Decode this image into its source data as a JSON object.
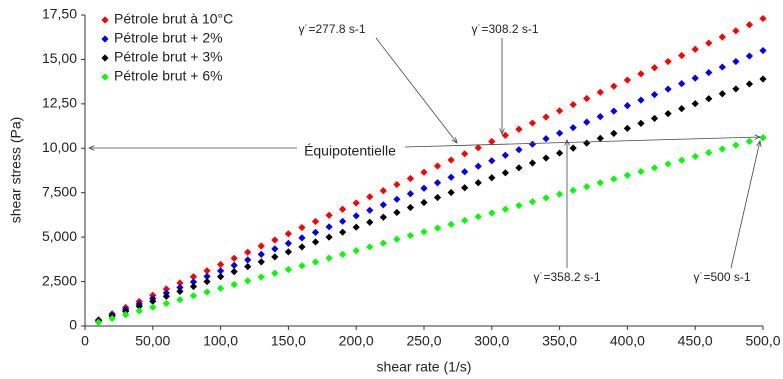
{
  "chart_data": {
    "type": "scatter",
    "x_label": "shear rate (1/s)",
    "y_label": "shear stress (Pa)",
    "x": [
      10,
      20,
      30,
      40,
      50,
      60,
      70,
      80,
      90,
      100,
      110,
      120,
      130,
      140,
      150,
      160,
      170,
      180,
      190,
      200,
      210,
      220,
      230,
      240,
      250,
      260,
      270,
      280,
      290,
      300,
      310,
      320,
      330,
      340,
      350,
      360,
      370,
      380,
      390,
      400,
      410,
      420,
      430,
      440,
      450,
      460,
      470,
      480,
      490,
      500
    ],
    "series": [
      {
        "name": "Pétrole brut à 10°C",
        "color": "#ff0000",
        "values": [
          0.35,
          0.69,
          1.04,
          1.38,
          1.73,
          2.08,
          2.42,
          2.77,
          3.11,
          3.46,
          3.81,
          4.15,
          4.5,
          4.84,
          5.19,
          5.54,
          5.88,
          6.23,
          6.57,
          6.92,
          7.27,
          7.61,
          7.96,
          8.3,
          8.65,
          9.0,
          9.34,
          9.69,
          10.03,
          10.38,
          10.73,
          11.07,
          11.42,
          11.76,
          12.11,
          12.46,
          12.8,
          13.15,
          13.49,
          13.84,
          14.19,
          14.53,
          14.88,
          15.22,
          15.57,
          15.92,
          16.26,
          16.61,
          16.95,
          17.3
        ]
      },
      {
        "name": "Pétrole brut + 2%",
        "color": "#0000ff",
        "values": [
          0.31,
          0.62,
          0.93,
          1.24,
          1.55,
          1.86,
          2.17,
          2.48,
          2.79,
          3.1,
          3.41,
          3.72,
          4.03,
          4.34,
          4.65,
          4.96,
          5.27,
          5.58,
          5.89,
          6.2,
          6.51,
          6.82,
          7.13,
          7.44,
          7.75,
          8.06,
          8.37,
          8.68,
          8.99,
          9.3,
          9.61,
          9.92,
          10.23,
          10.54,
          10.85,
          11.16,
          11.47,
          11.78,
          12.09,
          12.4,
          12.71,
          13.02,
          13.33,
          13.64,
          13.95,
          14.26,
          14.57,
          14.88,
          15.19,
          15.5
        ]
      },
      {
        "name": "Pétrole brut + 3%",
        "color": "#000000",
        "values": [
          0.28,
          0.56,
          0.83,
          1.11,
          1.39,
          1.67,
          1.95,
          2.22,
          2.5,
          2.78,
          3.06,
          3.34,
          3.61,
          3.89,
          4.17,
          4.45,
          4.73,
          5.0,
          5.28,
          5.56,
          5.84,
          6.12,
          6.39,
          6.67,
          6.95,
          7.23,
          7.51,
          7.78,
          8.06,
          8.34,
          8.62,
          8.9,
          9.17,
          9.45,
          9.73,
          10.01,
          10.29,
          10.56,
          10.84,
          11.12,
          11.4,
          11.68,
          11.95,
          12.23,
          12.51,
          12.79,
          13.07,
          13.34,
          13.62,
          13.9
        ]
      },
      {
        "name": "Pétrole brut + 6%",
        "color": "#00ff00",
        "values": [
          0.21,
          0.42,
          0.64,
          0.85,
          1.06,
          1.27,
          1.48,
          1.7,
          1.91,
          2.12,
          2.33,
          2.54,
          2.76,
          2.97,
          3.18,
          3.39,
          3.6,
          3.82,
          4.03,
          4.24,
          4.45,
          4.66,
          4.88,
          5.09,
          5.3,
          5.51,
          5.72,
          5.94,
          6.15,
          6.36,
          6.57,
          6.78,
          7.0,
          7.21,
          7.42,
          7.63,
          7.84,
          8.06,
          8.27,
          8.48,
          8.69,
          8.9,
          9.12,
          9.33,
          9.54,
          9.75,
          9.96,
          10.18,
          10.39,
          10.6
        ]
      }
    ],
    "xlim": [
      0,
      500
    ],
    "ylim": [
      0,
      17.5
    ],
    "xticks": [
      0,
      {
        "value": 50,
        "label": "50,00"
      },
      {
        "value": 100,
        "label": "100,0"
      },
      {
        "value": 150,
        "label": "150,0"
      },
      {
        "value": 200,
        "label": "200,0"
      },
      {
        "value": 250,
        "label": "250,0"
      },
      {
        "value": 300,
        "label": "300,0"
      },
      {
        "value": 350,
        "label": "350,0"
      },
      {
        "value": 400,
        "label": "400,0"
      },
      {
        "value": 450,
        "label": "450,0"
      },
      {
        "value": 500,
        "label": "500,0"
      }
    ],
    "yticks": [
      0,
      {
        "value": 2.5,
        "label": "2,500"
      },
      {
        "value": 5,
        "label": "5,000"
      },
      {
        "value": 7.5,
        "label": "7,500"
      },
      {
        "value": 10,
        "label": "10,00"
      },
      {
        "value": 12.5,
        "label": "12,50"
      },
      {
        "value": 15,
        "label": "15,00"
      },
      {
        "value": 17.5,
        "label": "17,50"
      }
    ],
    "legend": "top-left",
    "annotations": [
      "γ˙=277.8 s-1",
      "γ˙=308.2 s-1",
      "γ˙=358.2 s-1",
      "γ˙=500 s-1",
      "Équipotentielle"
    ]
  }
}
